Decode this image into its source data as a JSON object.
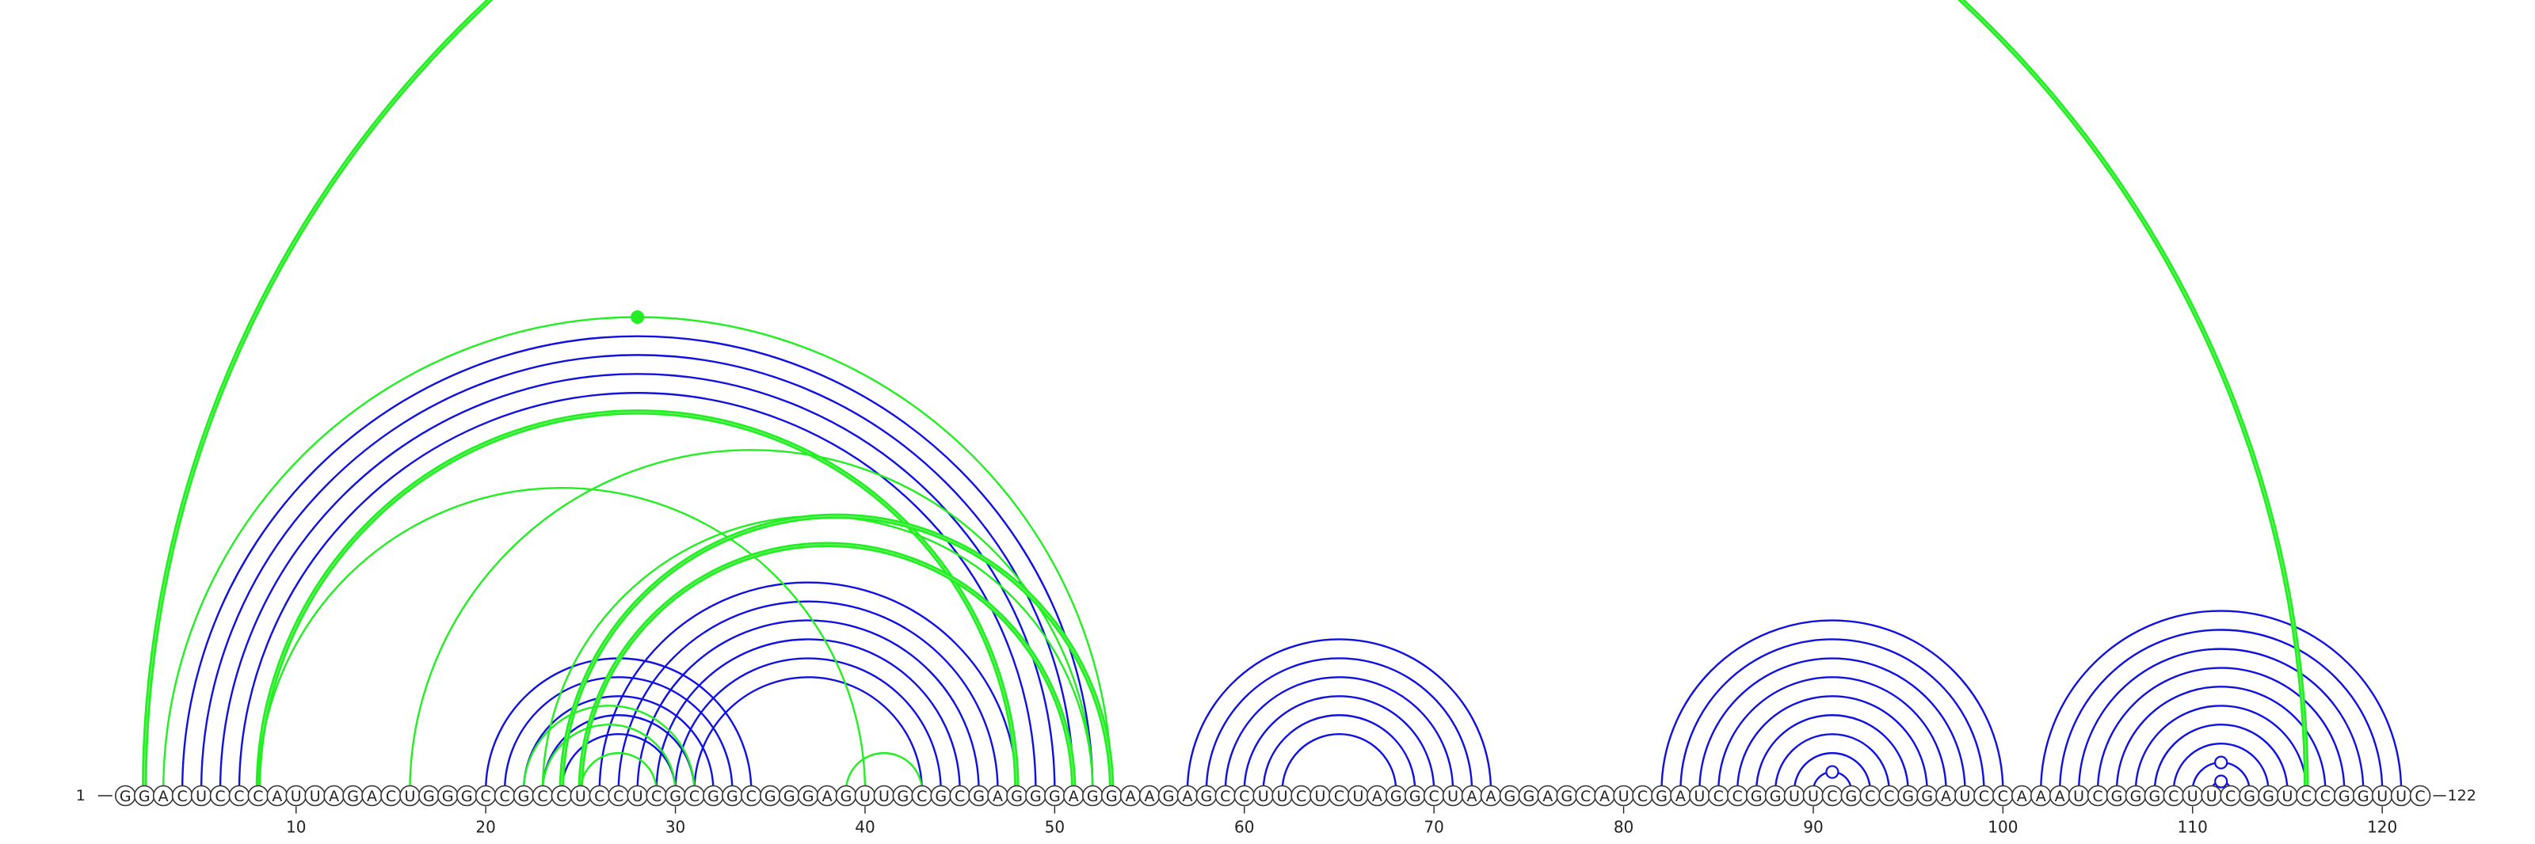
{
  "sequence": "GGACUCCCAUUAGACUGGGCCGCCUCCUCGCGGCGGGAGUUGCGCGAGGGAGGAAGAGCCUUCUCUAGGCUAAGGAGCAUCGAUCCGGUUCGCCGGAUCCAAAUCGGGCUUCGGUCCGGUUC",
  "start_label": "1",
  "end_label": "122",
  "ticks": [
    10,
    20,
    30,
    40,
    50,
    60,
    70,
    80,
    90,
    100,
    110,
    120
  ],
  "colors": {
    "blue": "#1010e0",
    "green": "#22ee22"
  },
  "chart_data": {
    "type": "arc-diagram",
    "length": 122,
    "blue_pairs": [
      [
        4,
        52
      ],
      [
        5,
        51
      ],
      [
        6,
        50
      ],
      [
        7,
        49
      ],
      [
        20,
        34
      ],
      [
        21,
        33
      ],
      [
        22,
        32
      ],
      [
        23,
        31
      ],
      [
        24,
        30
      ],
      [
        26,
        48
      ],
      [
        27,
        47
      ],
      [
        28,
        46
      ],
      [
        29,
        45
      ],
      [
        30,
        44
      ],
      [
        31,
        43
      ],
      [
        57,
        73
      ],
      [
        58,
        72
      ],
      [
        59,
        71
      ],
      [
        60,
        70
      ],
      [
        61,
        69
      ],
      [
        62,
        68
      ],
      [
        82,
        100
      ],
      [
        83,
        99
      ],
      [
        84,
        98
      ],
      [
        85,
        97
      ],
      [
        86,
        96
      ],
      [
        87,
        95
      ],
      [
        88,
        94
      ],
      [
        89,
        93
      ],
      [
        90,
        92
      ],
      [
        102,
        121
      ],
      [
        103,
        120
      ],
      [
        104,
        119
      ],
      [
        105,
        118
      ],
      [
        106,
        117
      ],
      [
        107,
        116
      ],
      [
        108,
        115
      ],
      [
        109,
        114
      ],
      [
        110,
        113
      ],
      [
        111,
        112
      ]
    ],
    "green_pairs": [
      [
        2,
        116
      ],
      [
        3,
        53
      ],
      [
        8,
        48
      ],
      [
        8,
        40
      ],
      [
        16,
        52
      ],
      [
        23,
        52
      ],
      [
        24,
        53
      ],
      [
        25,
        51
      ],
      [
        22,
        31
      ],
      [
        23,
        30
      ],
      [
        25,
        29
      ],
      [
        39,
        43
      ]
    ],
    "green_thick_pairs": [
      [
        2,
        116
      ],
      [
        8,
        48
      ],
      [
        24,
        53
      ],
      [
        25,
        51
      ]
    ],
    "blue_markers": [
      [
        90,
        92
      ],
      [
        110,
        113
      ],
      [
        111,
        112
      ]
    ],
    "green_markers": [
      [
        3,
        53
      ]
    ]
  }
}
